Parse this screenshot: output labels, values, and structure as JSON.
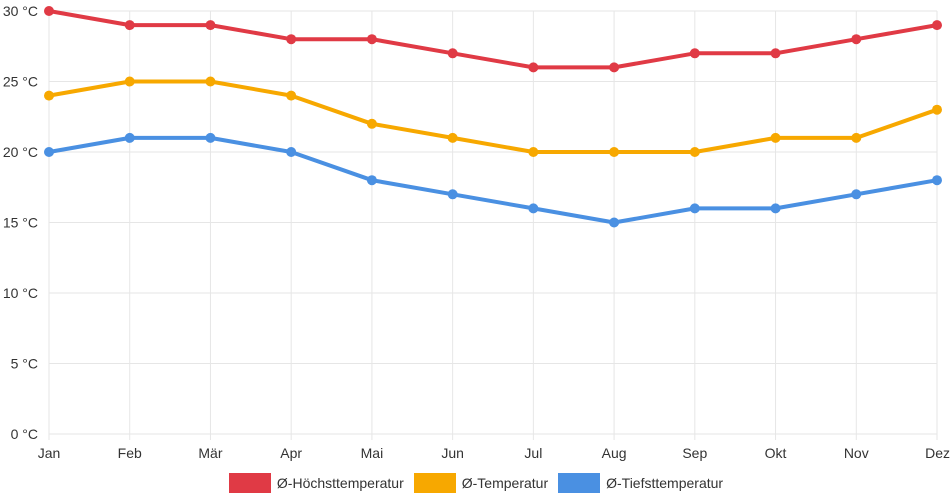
{
  "chart_data": {
    "type": "line",
    "title": "",
    "xlabel": "",
    "ylabel": "",
    "categories": [
      "Jan",
      "Feb",
      "Mär",
      "Apr",
      "Mai",
      "Jun",
      "Jul",
      "Aug",
      "Sep",
      "Okt",
      "Nov",
      "Dez"
    ],
    "ylim": [
      0,
      30
    ],
    "yticks": [
      0,
      5,
      10,
      15,
      20,
      25,
      30
    ],
    "y_unit": " °C",
    "grid": true,
    "legend_position": "bottom-center",
    "series": [
      {
        "name": "Ø-Höchsttemperatur",
        "color": "#e03a45",
        "values": [
          30,
          29,
          29,
          28,
          28,
          27,
          26,
          26,
          27,
          27,
          28,
          29
        ]
      },
      {
        "name": "Ø-Temperatur",
        "color": "#f7a800",
        "values": [
          24,
          25,
          25,
          24,
          22,
          21,
          20,
          20,
          20,
          21,
          21,
          23
        ]
      },
      {
        "name": "Ø-Tiefsttemperatur",
        "color": "#4a90e2",
        "values": [
          20,
          21,
          21,
          20,
          18,
          17,
          16,
          15,
          16,
          16,
          17,
          18
        ]
      }
    ]
  }
}
